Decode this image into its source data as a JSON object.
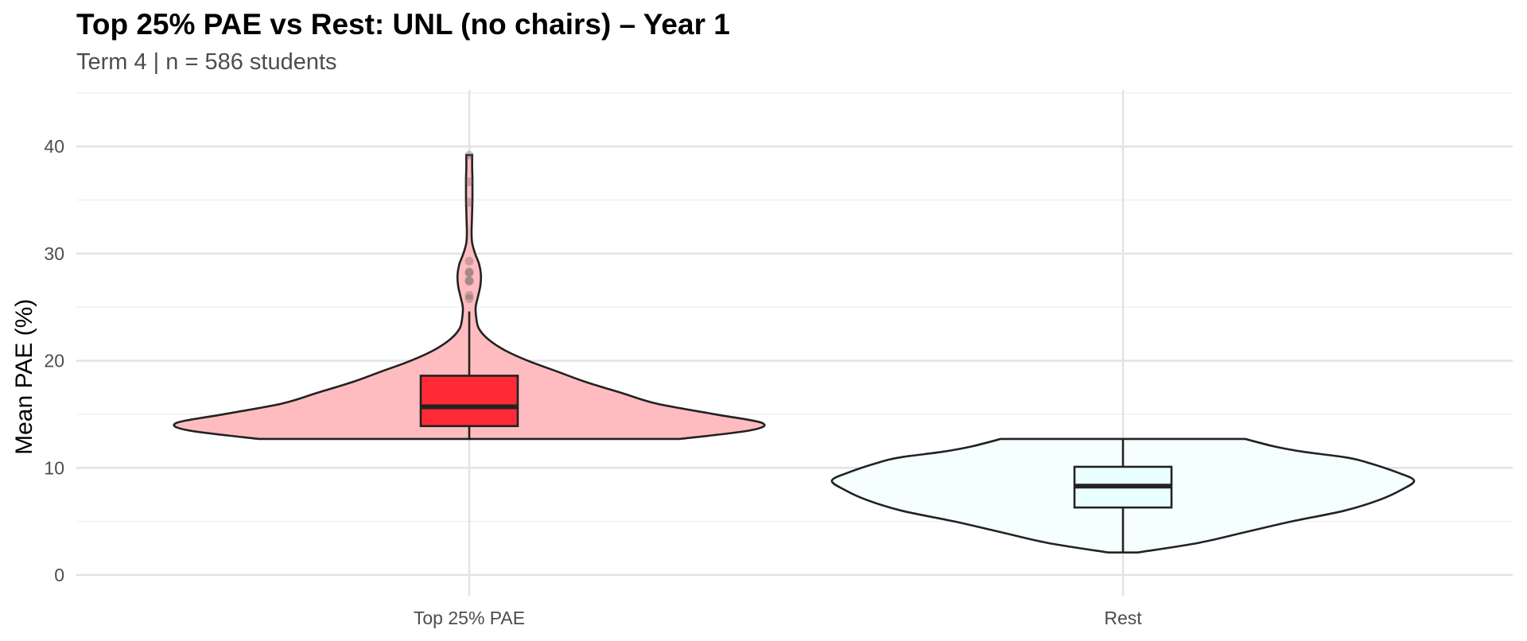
{
  "chart_data": {
    "type": "violin",
    "title": "Top 25% PAE vs Rest: UNL (no chairs) – Year 1",
    "subtitle": "Term 4 | n = 586 students",
    "xlabel": "",
    "ylabel": "Mean PAE (%)",
    "ylim": [
      -2.5,
      45
    ],
    "yticks": [
      0,
      10,
      20,
      30,
      40
    ],
    "grid": true,
    "legend": "none",
    "categories": [
      "Top 25% PAE",
      "Rest"
    ],
    "groups": [
      {
        "category": "Top 25% PAE",
        "violin_color": "#ffbcc0",
        "box_color": "#ff2a36",
        "box": {
          "min": 12.7,
          "q1": 13.9,
          "median": 15.7,
          "q3": 18.6,
          "whisker_high": 24.6
        },
        "outliers": [
          25.8,
          26.1,
          27.4,
          27.5,
          28.2,
          28.3,
          29.3,
          34.8,
          36.7,
          39.2
        ],
        "density": [
          [
            12.7,
            0.72
          ],
          [
            13.5,
            0.96
          ],
          [
            14.2,
            1.0
          ],
          [
            15.0,
            0.84
          ],
          [
            16.0,
            0.64
          ],
          [
            17.0,
            0.52
          ],
          [
            18.0,
            0.4
          ],
          [
            19.0,
            0.3
          ],
          [
            20.0,
            0.2
          ],
          [
            21.0,
            0.12
          ],
          [
            22.0,
            0.065
          ],
          [
            23.0,
            0.033
          ],
          [
            24.0,
            0.024
          ],
          [
            25.0,
            0.022
          ],
          [
            26.0,
            0.03
          ],
          [
            27.0,
            0.038
          ],
          [
            28.0,
            0.04
          ],
          [
            29.0,
            0.034
          ],
          [
            30.0,
            0.02
          ],
          [
            31.0,
            0.01
          ],
          [
            32.0,
            0.008
          ],
          [
            33.0,
            0.009
          ],
          [
            34.0,
            0.01
          ],
          [
            35.0,
            0.011
          ],
          [
            36.0,
            0.011
          ],
          [
            37.0,
            0.011
          ],
          [
            38.0,
            0.01
          ],
          [
            39.2,
            0.01
          ]
        ]
      },
      {
        "category": "Rest",
        "violin_color": "#f5ffff",
        "box_color": "#eaffff",
        "box": {
          "min": 2.1,
          "q1": 6.3,
          "median": 8.3,
          "q3": 10.1,
          "whisker_high": 12.7
        },
        "outliers": [],
        "density": [
          [
            2.1,
            0.05
          ],
          [
            3.0,
            0.26
          ],
          [
            4.0,
            0.42
          ],
          [
            5.0,
            0.58
          ],
          [
            6.0,
            0.76
          ],
          [
            7.0,
            0.88
          ],
          [
            8.0,
            0.96
          ],
          [
            8.8,
            1.0
          ],
          [
            9.5,
            0.95
          ],
          [
            10.5,
            0.84
          ],
          [
            11.0,
            0.76
          ],
          [
            11.5,
            0.62
          ],
          [
            12.0,
            0.52
          ],
          [
            12.7,
            0.42
          ]
        ]
      }
    ]
  }
}
